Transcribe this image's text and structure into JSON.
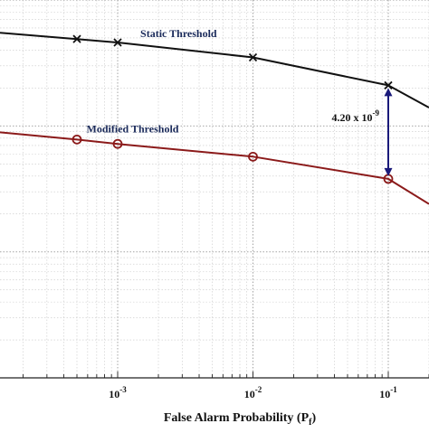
{
  "chart_data": {
    "type": "line",
    "title": "",
    "xlabel_main": "False Alarm Probability (P",
    "xlabel_sub": "f",
    "xlabel_close": ")",
    "ylabel": "",
    "x_scale": "log",
    "y_scale": "log",
    "xlim": [
      0.000135,
      0.2
    ],
    "ylim": [
      1e-10,
      1e-07
    ],
    "grid": true,
    "x_ticks": [
      {
        "value": 0.001,
        "base": "10",
        "exp": "-3"
      },
      {
        "value": 0.01,
        "base": "10",
        "exp": "-2"
      },
      {
        "value": 0.1,
        "base": "10",
        "exp": "-1"
      }
    ],
    "series": [
      {
        "name": "Static Threshold",
        "color": "#111111",
        "marker": "x",
        "x": [
          0.000135,
          0.0005,
          0.001,
          0.01,
          0.1,
          0.2
        ],
        "y": [
          5.5e-08,
          4.9e-08,
          4.6e-08,
          3.5e-08,
          2.1e-08,
          1.4e-08
        ],
        "marker_x": [
          0.0005,
          0.001,
          0.01,
          0.1
        ]
      },
      {
        "name": "Modified Threshold",
        "color": "#8b1a1a",
        "marker": "o",
        "x": [
          0.000135,
          0.0005,
          0.001,
          0.01,
          0.1,
          0.2
        ],
        "y": [
          8.9e-09,
          7.8e-09,
          7.2e-09,
          5.7e-09,
          3.8e-09,
          2.4e-09
        ],
        "marker_x": [
          0.0005,
          0.001,
          0.01,
          0.1
        ]
      }
    ],
    "annotations": [
      {
        "series": 0,
        "text": "Static Threshold",
        "at_x": 0.0013
      },
      {
        "series": 1,
        "text": "Modified Threshold",
        "at_x": 0.00052
      }
    ],
    "measurement": {
      "x": 0.1,
      "y_top": 2.1e-08,
      "y_bottom": 3.8e-09,
      "label_main": "4.20 x 10",
      "label_exp": "-9",
      "color": "#1a1a7a"
    }
  }
}
